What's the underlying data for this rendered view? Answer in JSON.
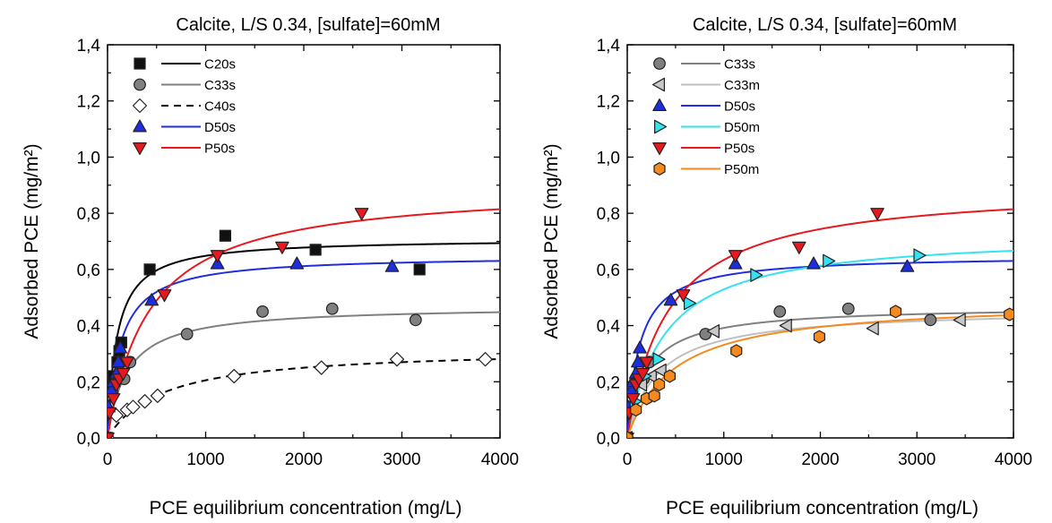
{
  "chart_data": [
    {
      "type": "scatter",
      "title": "Calcite, L/S 0.34, [sulfate]=60mM",
      "xlabel": "PCE equilibrium concentration (mg/L)",
      "ylabel": "Adsorbed PCE (mg/m²)",
      "xlim": [
        0,
        4000
      ],
      "ylim": [
        0,
        1.4
      ],
      "xticks": [
        "0",
        "1000",
        "2000",
        "3000",
        "4000"
      ],
      "yticks": [
        "0,0",
        "0,2",
        "0,4",
        "0,6",
        "0,8",
        "1,0",
        "1,2",
        "1,4"
      ],
      "grid": false,
      "legend_position": "top-left",
      "series": [
        {
          "name": "C20s",
          "marker": "square",
          "markerFill": "#111111",
          "lineColor": "#000000",
          "dash": false,
          "points": [
            [
              0,
              0
            ],
            [
              30,
              0.19
            ],
            [
              60,
              0.22
            ],
            [
              100,
              0.27
            ],
            [
              120,
              0.31
            ],
            [
              140,
              0.34
            ],
            [
              430,
              0.6
            ],
            [
              1200,
              0.72
            ],
            [
              2120,
              0.67
            ],
            [
              3180,
              0.6
            ]
          ],
          "fit": {
            "qmax": 0.71,
            "K": 95
          }
        },
        {
          "name": "C33s",
          "marker": "circle",
          "markerFill": "#808080",
          "lineColor": "#808080",
          "dash": false,
          "points": [
            [
              0,
              0
            ],
            [
              50,
              0.16
            ],
            [
              100,
              0.21
            ],
            [
              170,
              0.21
            ],
            [
              230,
              0.27
            ],
            [
              810,
              0.37
            ],
            [
              1580,
              0.45
            ],
            [
              2290,
              0.46
            ],
            [
              3140,
              0.42
            ]
          ],
          "fit": {
            "qmax": 0.47,
            "K": 200
          }
        },
        {
          "name": "C40s",
          "marker": "diamond",
          "markerFill": "#ffffff",
          "lineColor": "#000000",
          "dash": true,
          "points": [
            [
              0,
              0
            ],
            [
              90,
              0.08
            ],
            [
              200,
              0.1
            ],
            [
              260,
              0.11
            ],
            [
              380,
              0.13
            ],
            [
              510,
              0.15
            ],
            [
              1290,
              0.22
            ],
            [
              2180,
              0.25
            ],
            [
              2950,
              0.28
            ],
            [
              3850,
              0.28
            ]
          ],
          "fit": {
            "qmax": 0.32,
            "K": 560
          }
        },
        {
          "name": "D50s",
          "marker": "triangle-up",
          "markerFill": "#1f2de0",
          "lineColor": "#1f2de0",
          "dash": false,
          "points": [
            [
              0,
              0
            ],
            [
              10,
              0.11
            ],
            [
              40,
              0.17
            ],
            [
              60,
              0.2
            ],
            [
              90,
              0.23
            ],
            [
              110,
              0.27
            ],
            [
              130,
              0.32
            ],
            [
              450,
              0.49
            ],
            [
              1120,
              0.62
            ],
            [
              1930,
              0.62
            ],
            [
              2900,
              0.61
            ]
          ],
          "fit": {
            "qmax": 0.65,
            "K": 125
          }
        },
        {
          "name": "P50s",
          "marker": "triangle-down",
          "markerFill": "#e8191e",
          "lineColor": "#e8191e",
          "dash": false,
          "points": [
            [
              0,
              0
            ],
            [
              20,
              0.09
            ],
            [
              60,
              0.14
            ],
            [
              90,
              0.19
            ],
            [
              120,
              0.21
            ],
            [
              160,
              0.23
            ],
            [
              200,
              0.27
            ],
            [
              580,
              0.51
            ],
            [
              1120,
              0.65
            ],
            [
              1780,
              0.68
            ],
            [
              2590,
              0.8
            ]
          ],
          "fit": {
            "qmax": 0.9,
            "K": 420
          }
        }
      ]
    },
    {
      "type": "scatter",
      "title": "Calcite, L/S 0.34, [sulfate]=60mM",
      "xlabel": "PCE equilibrium concentration (mg/L)",
      "ylabel": "Adsorbed PCE (mg/m²)",
      "xlim": [
        0,
        4000
      ],
      "ylim": [
        0,
        1.4
      ],
      "xticks": [
        "0",
        "1000",
        "2000",
        "3000",
        "4000"
      ],
      "yticks": [
        "0,0",
        "0,2",
        "0,4",
        "0,6",
        "0,8",
        "1,0",
        "1,2",
        "1,4"
      ],
      "grid": false,
      "legend_position": "top-left",
      "series": [
        {
          "name": "C33s",
          "marker": "circle",
          "markerFill": "#808080",
          "lineColor": "#808080",
          "dash": false,
          "points": [
            [
              0,
              0
            ],
            [
              50,
              0.16
            ],
            [
              100,
              0.21
            ],
            [
              170,
              0.21
            ],
            [
              230,
              0.27
            ],
            [
              810,
              0.37
            ],
            [
              1580,
              0.45
            ],
            [
              2290,
              0.46
            ],
            [
              3140,
              0.42
            ]
          ],
          "fit": {
            "qmax": 0.47,
            "K": 200
          }
        },
        {
          "name": "C33m",
          "marker": "triangle-left",
          "markerFill": "#c8c8c8",
          "lineColor": "#c0c0c0",
          "dash": false,
          "points": [
            [
              0,
              0
            ],
            [
              150,
              0.19
            ],
            [
              250,
              0.22
            ],
            [
              350,
              0.24
            ],
            [
              900,
              0.38
            ],
            [
              1650,
              0.4
            ],
            [
              2550,
              0.39
            ],
            [
              3450,
              0.42
            ]
          ],
          "fit": {
            "qmax": 0.46,
            "K": 320
          }
        },
        {
          "name": "D50s",
          "marker": "triangle-up",
          "markerFill": "#1f2de0",
          "lineColor": "#1f2de0",
          "dash": false,
          "points": [
            [
              0,
              0
            ],
            [
              10,
              0.11
            ],
            [
              40,
              0.17
            ],
            [
              60,
              0.2
            ],
            [
              90,
              0.23
            ],
            [
              110,
              0.27
            ],
            [
              130,
              0.32
            ],
            [
              450,
              0.49
            ],
            [
              1120,
              0.62
            ],
            [
              1930,
              0.62
            ],
            [
              2900,
              0.61
            ]
          ],
          "fit": {
            "qmax": 0.65,
            "K": 125
          }
        },
        {
          "name": "D50m",
          "marker": "triangle-right",
          "markerFill": "#33e4f0",
          "lineColor": "#33e4f0",
          "dash": false,
          "points": [
            [
              0,
              0
            ],
            [
              80,
              0.13
            ],
            [
              180,
              0.22
            ],
            [
              320,
              0.28
            ],
            [
              640,
              0.48
            ],
            [
              1330,
              0.58
            ],
            [
              2080,
              0.63
            ],
            [
              3020,
              0.65
            ]
          ],
          "fit": {
            "qmax": 0.73,
            "K": 380
          }
        },
        {
          "name": "P50s",
          "marker": "triangle-down",
          "markerFill": "#e8191e",
          "lineColor": "#e8191e",
          "dash": false,
          "points": [
            [
              0,
              0
            ],
            [
              20,
              0.09
            ],
            [
              60,
              0.14
            ],
            [
              90,
              0.19
            ],
            [
              120,
              0.21
            ],
            [
              160,
              0.23
            ],
            [
              200,
              0.27
            ],
            [
              580,
              0.51
            ],
            [
              1120,
              0.65
            ],
            [
              1780,
              0.68
            ],
            [
              2590,
              0.8
            ]
          ],
          "fit": {
            "qmax": 0.9,
            "K": 420
          }
        },
        {
          "name": "P50m",
          "marker": "hexagon",
          "markerFill": "#f58a1e",
          "lineColor": "#f58a1e",
          "dash": false,
          "points": [
            [
              0,
              0
            ],
            [
              90,
              0.1
            ],
            [
              200,
              0.14
            ],
            [
              280,
              0.15
            ],
            [
              330,
              0.19
            ],
            [
              440,
              0.22
            ],
            [
              1130,
              0.31
            ],
            [
              1990,
              0.36
            ],
            [
              2780,
              0.45
            ],
            [
              3960,
              0.44
            ]
          ],
          "fit": {
            "qmax": 0.49,
            "K": 480
          }
        }
      ]
    }
  ]
}
